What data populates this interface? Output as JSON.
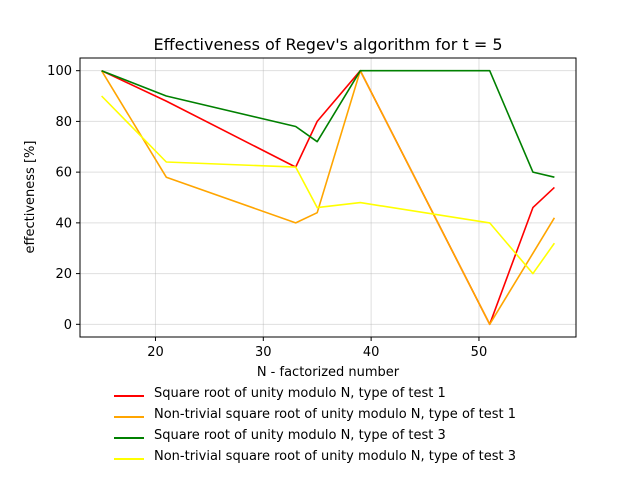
{
  "chart_data": {
    "type": "line",
    "title": "Effectiveness of Regev's algorithm for t = 5",
    "xlabel": "N - factorized number",
    "ylabel": "effectiveness [%]",
    "xlim": [
      13,
      59
    ],
    "ylim": [
      -5,
      105
    ],
    "xticks": [
      20,
      30,
      40,
      50
    ],
    "yticks": [
      0,
      20,
      40,
      60,
      80,
      100
    ],
    "grid": true,
    "legend_position": "below plot",
    "series": [
      {
        "name": "Square root of unity modulo N, type of test 1",
        "color": "#ff0000",
        "x": [
          15,
          21,
          33,
          35,
          39,
          51,
          55,
          57
        ],
        "y": [
          100,
          88,
          62,
          80,
          100,
          0,
          46,
          54
        ]
      },
      {
        "name": "Non-trivial square root of unity modulo N, type of test 1",
        "color": "#ffa500",
        "x": [
          15,
          21,
          33,
          35,
          39,
          51,
          55,
          57
        ],
        "y": [
          100,
          58,
          40,
          44,
          100,
          0,
          28,
          42
        ]
      },
      {
        "name": "Square root of unity modulo N, type of test 3",
        "color": "#008000",
        "x": [
          15,
          21,
          33,
          35,
          39,
          51,
          55,
          57
        ],
        "y": [
          100,
          90,
          78,
          72,
          100,
          100,
          60,
          58
        ]
      },
      {
        "name": "Non-trivial square root of unity modulo N, type of test 3",
        "color": "#ffff00",
        "x": [
          15,
          21,
          33,
          35,
          39,
          51,
          55,
          57
        ],
        "y": [
          90,
          64,
          62,
          46,
          48,
          40,
          20,
          32
        ]
      }
    ]
  }
}
